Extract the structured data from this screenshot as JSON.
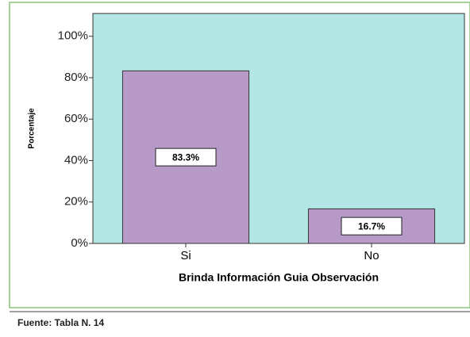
{
  "chart_data": {
    "type": "bar",
    "y_label": "Porcentaje",
    "x_label": "Brinda Información Guia Observación",
    "source": "Fuente: Tabla N. 14",
    "categories": [
      "Si",
      "No"
    ],
    "values": [
      83.3,
      16.7
    ],
    "value_labels": [
      "83.3%",
      "16.7%"
    ],
    "color": "#b89ac8",
    "ylim": [
      0,
      111
    ],
    "yticks": [
      {
        "value": 0,
        "label": "0%"
      },
      {
        "value": 20,
        "label": "20%"
      },
      {
        "value": 40,
        "label": "40%"
      },
      {
        "value": 60,
        "label": "60%"
      },
      {
        "value": 80,
        "label": "80%"
      },
      {
        "value": 100,
        "label": "100%"
      }
    ],
    "grid": false
  }
}
